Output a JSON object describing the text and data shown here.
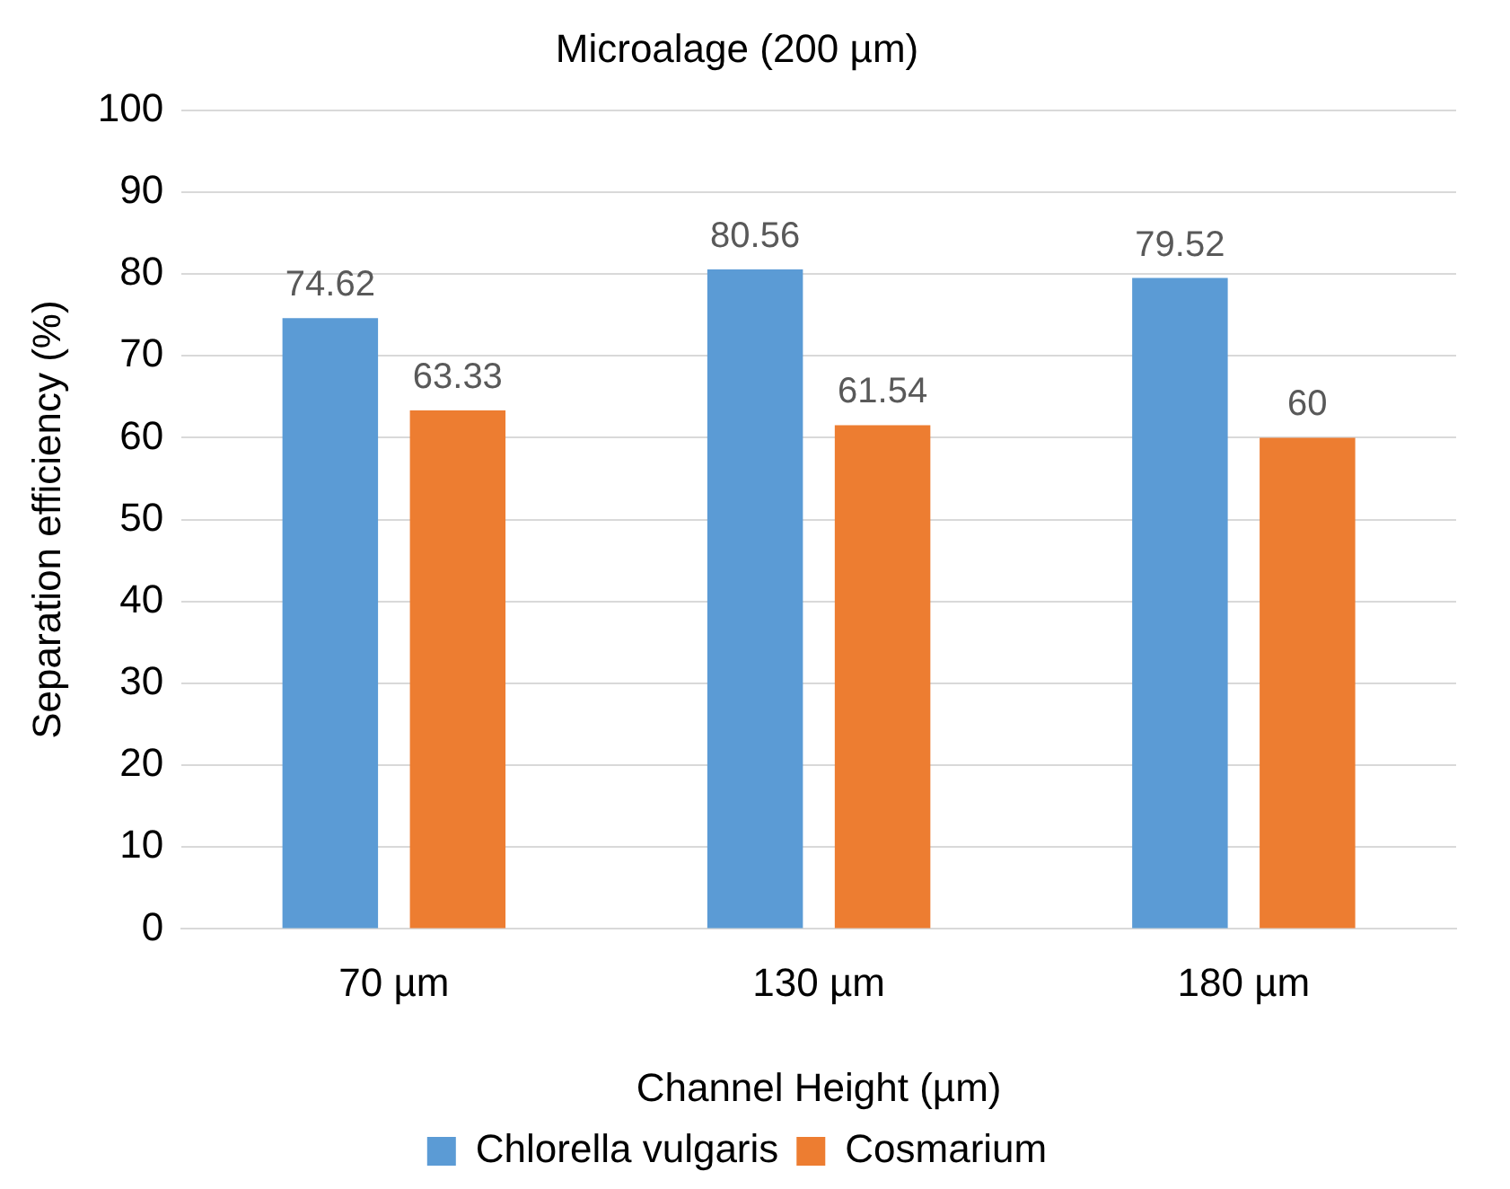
{
  "chart_data": {
    "type": "bar",
    "title": "Microalage (200 µm)",
    "xlabel": "Channel Height (µm)",
    "ylabel": "Separation efficiency (%)",
    "categories": [
      "70 µm",
      "130 µm",
      "180 µm"
    ],
    "series": [
      {
        "name": "Chlorella vulgaris",
        "color": "#5b9bd5",
        "values": [
          74.62,
          80.56,
          79.52
        ]
      },
      {
        "name": "Cosmarium",
        "color": "#ed7d31",
        "values": [
          63.33,
          61.54,
          60
        ]
      }
    ],
    "ylim": [
      0,
      100
    ],
    "yticks": [
      0,
      10,
      20,
      30,
      40,
      50,
      60,
      70,
      80,
      90,
      100
    ],
    "grid": "y",
    "legend": "bottom",
    "data_labels": true
  }
}
